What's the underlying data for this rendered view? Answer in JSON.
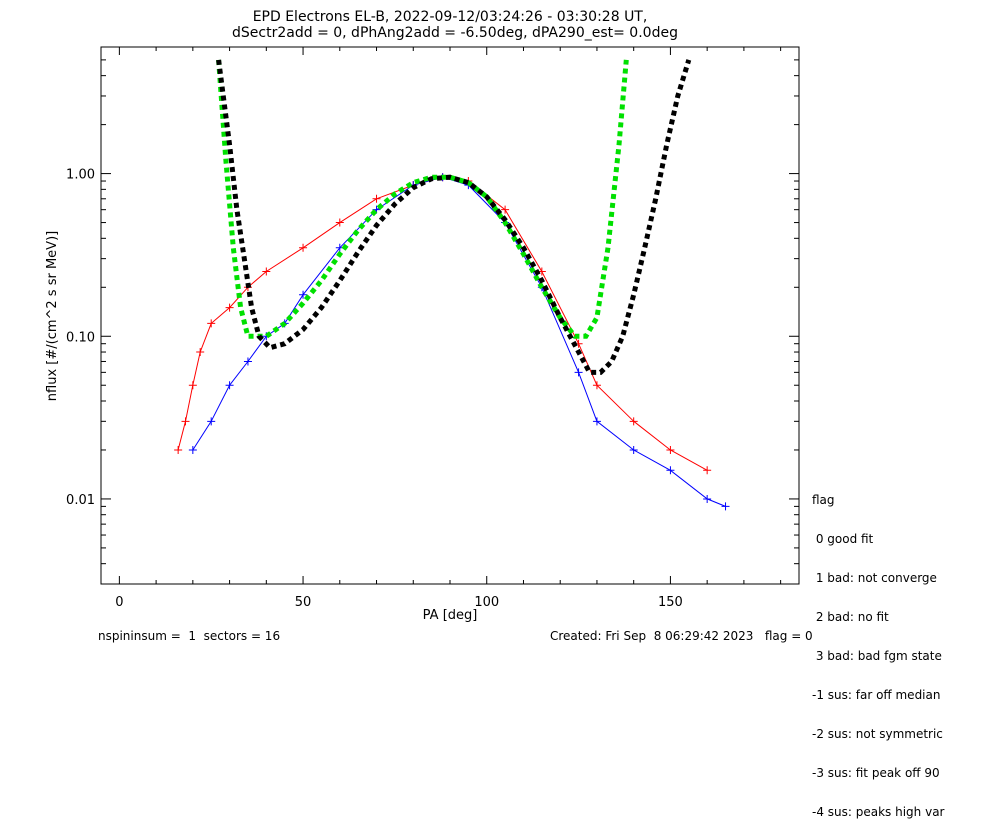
{
  "chart_data": {
    "type": "line",
    "title": "EPD Electrons EL-B, 2022-09-12/03:24:26 - 03:30:28 UT,",
    "subtitle": "dSectr2add = 0, dPhAng2add = -6.50deg, dPA290_est=   0.0deg",
    "xlabel": "PA [deg]",
    "ylabel": "nflux [#/(cm^2 s sr MeV)]",
    "xlim": [
      -5,
      185
    ],
    "ylim": [
      0.003,
      6.0
    ],
    "yscale": "log",
    "xticks": [
      0,
      50,
      100,
      150
    ],
    "yticks": [
      {
        "value": 0.01,
        "label": "0.01"
      },
      {
        "value": 0.1,
        "label": "0.10"
      },
      {
        "value": 1.0,
        "label": "1.00"
      }
    ],
    "series": [
      {
        "color": "#ff0000",
        "marker": "+",
        "x": [
          16,
          18,
          20,
          22,
          25,
          30,
          35,
          40,
          50,
          60,
          70,
          80,
          88,
          95,
          105,
          115,
          125,
          130,
          140,
          150,
          160
        ],
        "y": [
          0.02,
          0.03,
          0.05,
          0.08,
          0.12,
          0.15,
          0.2,
          0.25,
          0.35,
          0.5,
          0.7,
          0.85,
          0.95,
          0.9,
          0.6,
          0.25,
          0.09,
          0.05,
          0.03,
          0.02,
          0.015
        ]
      },
      {
        "color": "#0000ff",
        "marker": "+",
        "x": [
          20,
          25,
          30,
          35,
          40,
          45,
          50,
          60,
          70,
          80,
          88,
          95,
          105,
          115,
          125,
          130,
          140,
          150,
          160,
          165
        ],
        "y": [
          0.02,
          0.03,
          0.05,
          0.07,
          0.1,
          0.12,
          0.18,
          0.35,
          0.6,
          0.85,
          0.95,
          0.85,
          0.5,
          0.2,
          0.06,
          0.03,
          0.02,
          0.015,
          0.01,
          0.009
        ]
      },
      {
        "color": "#00e000",
        "style": "dashed-thick",
        "x": [
          27,
          29,
          31,
          33,
          35,
          40,
          45,
          50,
          55,
          60,
          65,
          70,
          75,
          80,
          85,
          90,
          95,
          100,
          105,
          110,
          115,
          120,
          124,
          127,
          130,
          133,
          136,
          138
        ],
        "y": [
          5.0,
          1.2,
          0.35,
          0.15,
          0.1,
          0.1,
          0.12,
          0.16,
          0.22,
          0.32,
          0.45,
          0.6,
          0.75,
          0.88,
          0.95,
          0.95,
          0.88,
          0.72,
          0.5,
          0.32,
          0.2,
          0.13,
          0.1,
          0.1,
          0.13,
          0.35,
          1.5,
          5.0
        ]
      },
      {
        "color": "#000000",
        "style": "dashed-thick",
        "x": [
          27,
          30,
          32,
          34,
          36,
          38,
          41,
          45,
          50,
          55,
          60,
          65,
          70,
          75,
          80,
          85,
          90,
          95,
          100,
          105,
          110,
          115,
          120,
          125,
          128,
          131,
          134,
          137,
          140,
          143,
          146,
          149,
          152,
          155
        ],
        "y": [
          5.0,
          1.5,
          0.6,
          0.3,
          0.15,
          0.1,
          0.085,
          0.09,
          0.11,
          0.15,
          0.22,
          0.33,
          0.48,
          0.65,
          0.82,
          0.93,
          0.95,
          0.88,
          0.72,
          0.52,
          0.35,
          0.22,
          0.13,
          0.08,
          0.06,
          0.06,
          0.07,
          0.1,
          0.18,
          0.35,
          0.7,
          1.5,
          3.0,
          5.0
        ]
      }
    ],
    "legend_title": "flag",
    "legend_entries": [
      " 0 good fit",
      " 1 bad: not converge",
      " 2 bad: no fit",
      " 3 bad: bad fgm state",
      "-1 sus: far off median",
      "-2 sus: not symmetric",
      "-3 sus: fit peak off 90",
      "-4 sus: peaks high var"
    ],
    "legend_placement": "right",
    "footer_left": "nspininsum =  1  sectors = 16",
    "footer_right": "Created: Fri Sep  8 06:29:42 2023   flag = 0"
  }
}
